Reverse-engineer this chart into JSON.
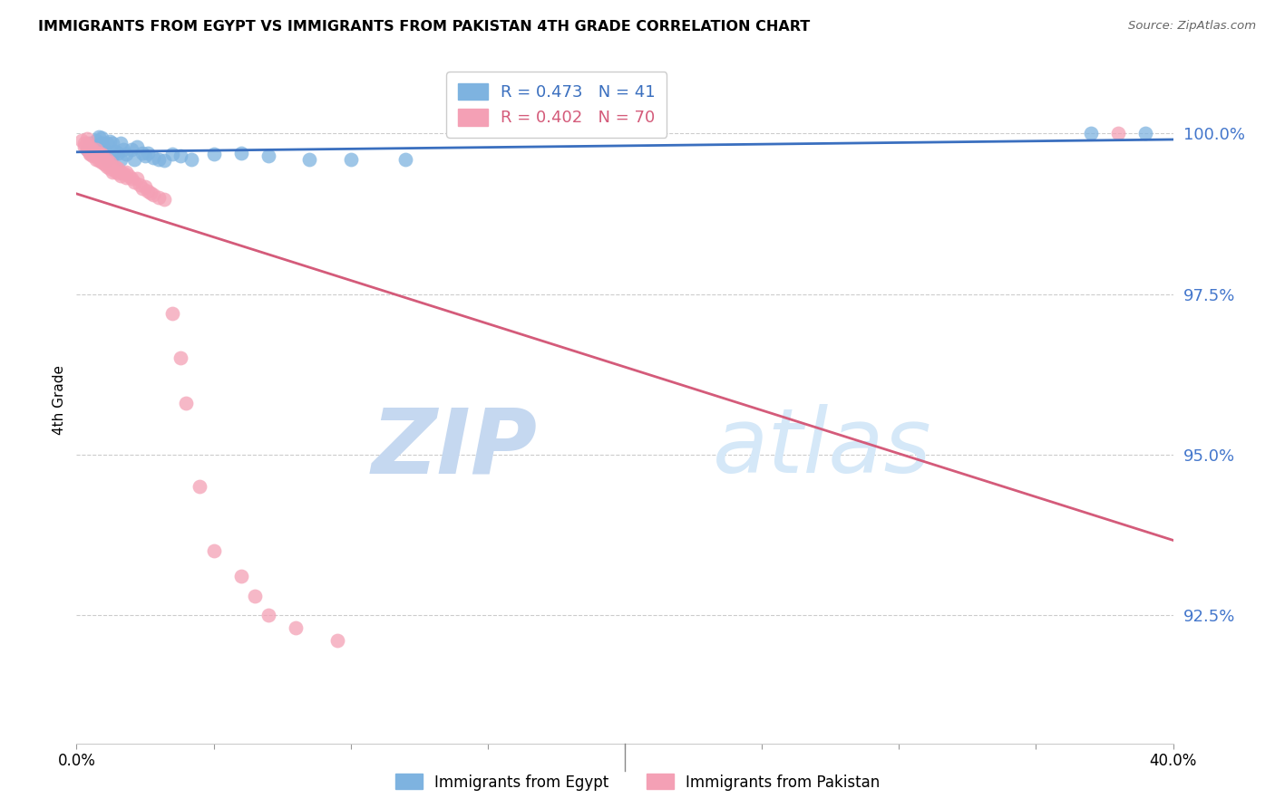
{
  "title": "IMMIGRANTS FROM EGYPT VS IMMIGRANTS FROM PAKISTAN 4TH GRADE CORRELATION CHART",
  "source": "Source: ZipAtlas.com",
  "ylabel": "4th Grade",
  "ytick_labels": [
    "100.0%",
    "97.5%",
    "95.0%",
    "92.5%"
  ],
  "ytick_values": [
    1.0,
    0.975,
    0.95,
    0.925
  ],
  "xlim": [
    0.0,
    0.4
  ],
  "ylim": [
    0.905,
    1.012
  ],
  "legend_blue": "R = 0.473   N = 41",
  "legend_pink": "R = 0.402   N = 70",
  "legend_label_blue": "Immigrants from Egypt",
  "legend_label_pink": "Immigrants from Pakistan",
  "blue_color": "#7EB3E0",
  "pink_color": "#F4A0B5",
  "trendline_blue": "#3A6FBF",
  "trendline_pink": "#D45B7A",
  "watermark_zip": "ZIP",
  "watermark_atlas": "atlas",
  "egypt_x": [
    0.004,
    0.005,
    0.006,
    0.007,
    0.008,
    0.008,
    0.009,
    0.009,
    0.01,
    0.01,
    0.011,
    0.011,
    0.012,
    0.013,
    0.013,
    0.014,
    0.015,
    0.016,
    0.016,
    0.017,
    0.018,
    0.02,
    0.021,
    0.022,
    0.024,
    0.025,
    0.026,
    0.028,
    0.03,
    0.032,
    0.035,
    0.038,
    0.042,
    0.05,
    0.06,
    0.07,
    0.085,
    0.1,
    0.12,
    0.37,
    0.39
  ],
  "egypt_y": [
    0.9975,
    0.9985,
    0.998,
    0.999,
    0.9995,
    0.9975,
    0.9993,
    0.9985,
    0.9975,
    0.997,
    0.9985,
    0.996,
    0.9988,
    0.9965,
    0.9985,
    0.9972,
    0.997,
    0.9985,
    0.996,
    0.9975,
    0.9968,
    0.9975,
    0.996,
    0.998,
    0.997,
    0.9965,
    0.997,
    0.9962,
    0.996,
    0.9958,
    0.9968,
    0.9965,
    0.996,
    0.9968,
    0.997,
    0.9965,
    0.996,
    0.996,
    0.996,
    1.0,
    1.0
  ],
  "pakistan_x": [
    0.002,
    0.003,
    0.003,
    0.004,
    0.004,
    0.004,
    0.005,
    0.005,
    0.005,
    0.005,
    0.006,
    0.006,
    0.006,
    0.006,
    0.007,
    0.007,
    0.007,
    0.007,
    0.008,
    0.008,
    0.008,
    0.008,
    0.009,
    0.009,
    0.009,
    0.009,
    0.01,
    0.01,
    0.01,
    0.01,
    0.011,
    0.011,
    0.011,
    0.012,
    0.012,
    0.012,
    0.013,
    0.013,
    0.014,
    0.014,
    0.015,
    0.015,
    0.016,
    0.016,
    0.017,
    0.018,
    0.018,
    0.019,
    0.02,
    0.021,
    0.022,
    0.023,
    0.024,
    0.025,
    0.026,
    0.027,
    0.028,
    0.03,
    0.032,
    0.035,
    0.038,
    0.04,
    0.045,
    0.05,
    0.06,
    0.065,
    0.07,
    0.08,
    0.095,
    0.38
  ],
  "pakistan_y": [
    0.999,
    0.9985,
    0.998,
    0.9992,
    0.9985,
    0.9975,
    0.998,
    0.9975,
    0.9968,
    0.997,
    0.9975,
    0.9972,
    0.9965,
    0.9968,
    0.9975,
    0.997,
    0.9965,
    0.996,
    0.997,
    0.9962,
    0.9958,
    0.9965,
    0.9968,
    0.996,
    0.9955,
    0.996,
    0.9958,
    0.9952,
    0.996,
    0.9955,
    0.9955,
    0.9948,
    0.996,
    0.995,
    0.9945,
    0.9955,
    0.9948,
    0.994,
    0.9948,
    0.9942,
    0.9945,
    0.9938,
    0.994,
    0.9935,
    0.9938,
    0.994,
    0.9932,
    0.9935,
    0.993,
    0.9925,
    0.993,
    0.992,
    0.9915,
    0.9918,
    0.991,
    0.9908,
    0.9905,
    0.99,
    0.9898,
    0.972,
    0.965,
    0.958,
    0.945,
    0.935,
    0.931,
    0.928,
    0.925,
    0.923,
    0.921,
    1.0
  ]
}
